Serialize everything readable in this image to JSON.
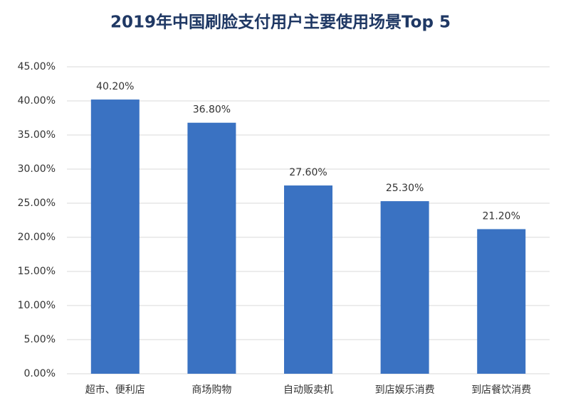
{
  "chart_data": {
    "type": "bar",
    "title": "2019年中国刷脸支付用户主要使用场景Top 5",
    "categories": [
      "超市、便利店",
      "商场购物",
      "自动贩卖机",
      "到店娱乐消费",
      "到店餐饮消费"
    ],
    "values": [
      40.2,
      36.8,
      27.6,
      25.3,
      21.2
    ],
    "value_labels": [
      "40.20%",
      "36.80%",
      "27.60%",
      "25.30%",
      "21.20%"
    ],
    "color": "#3a72c2",
    "ylim": [
      0,
      45
    ],
    "yticks": [
      {
        "value": 0,
        "label": "0.00%"
      },
      {
        "value": 5,
        "label": "5.00%"
      },
      {
        "value": 10,
        "label": "10.00%"
      },
      {
        "value": 15,
        "label": "15.00%"
      },
      {
        "value": 20,
        "label": "20.00%"
      },
      {
        "value": 25,
        "label": "25.00%"
      },
      {
        "value": 30,
        "label": "30.00%"
      },
      {
        "value": 35,
        "label": "35.00%"
      },
      {
        "value": 40,
        "label": "40.00%"
      },
      {
        "value": 45,
        "label": "45.00%"
      }
    ],
    "grid": true
  }
}
